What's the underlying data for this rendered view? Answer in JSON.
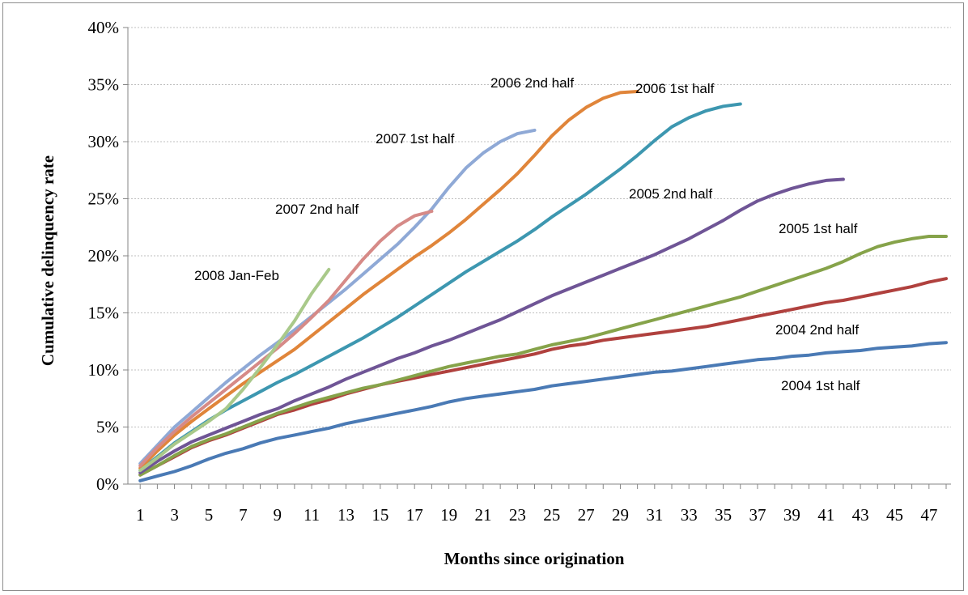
{
  "chart_data": {
    "type": "line",
    "title": "",
    "xlabel": "Months since origination",
    "ylabel": "Cumulative delinquency rate",
    "xlim": [
      1,
      48
    ],
    "ylim": [
      0,
      40
    ],
    "y_ticks": [
      "0%",
      "5%",
      "10%",
      "15%",
      "20%",
      "25%",
      "30%",
      "35%",
      "40%"
    ],
    "x_ticks": [
      "1",
      "3",
      "5",
      "7",
      "9",
      "11",
      "13",
      "15",
      "17",
      "19",
      "21",
      "23",
      "25",
      "27",
      "29",
      "31",
      "33",
      "35",
      "37",
      "39",
      "41",
      "43",
      "45",
      "47"
    ],
    "grid": true,
    "legend": "inline labels",
    "series": [
      {
        "name": "2004 1st half",
        "color": "#4a7ab5",
        "x": [
          1,
          2,
          3,
          4,
          5,
          6,
          7,
          8,
          9,
          10,
          11,
          12,
          13,
          14,
          15,
          16,
          17,
          18,
          19,
          20,
          21,
          22,
          23,
          24,
          25,
          26,
          27,
          28,
          29,
          30,
          31,
          32,
          33,
          34,
          35,
          36,
          37,
          38,
          39,
          40,
          41,
          42,
          43,
          44,
          45,
          46,
          47,
          48
        ],
        "values": [
          0.3,
          0.7,
          1.1,
          1.6,
          2.2,
          2.7,
          3.1,
          3.6,
          4.0,
          4.3,
          4.6,
          4.9,
          5.3,
          5.6,
          5.9,
          6.2,
          6.5,
          6.8,
          7.2,
          7.5,
          7.7,
          7.9,
          8.1,
          8.3,
          8.6,
          8.8,
          9.0,
          9.2,
          9.4,
          9.6,
          9.8,
          9.9,
          10.1,
          10.3,
          10.5,
          10.7,
          10.9,
          11.0,
          11.2,
          11.3,
          11.5,
          11.6,
          11.7,
          11.9,
          12.0,
          12.1,
          12.3,
          12.4
        ]
      },
      {
        "name": "2004 2nd half",
        "color": "#b0413e",
        "x": [
          1,
          2,
          3,
          4,
          5,
          6,
          7,
          8,
          9,
          10,
          11,
          12,
          13,
          14,
          15,
          16,
          17,
          18,
          19,
          20,
          21,
          22,
          23,
          24,
          25,
          26,
          27,
          28,
          29,
          30,
          31,
          32,
          33,
          34,
          35,
          36,
          37,
          38,
          39,
          40,
          41,
          42,
          43,
          44,
          45,
          46,
          47,
          48
        ],
        "values": [
          0.8,
          1.6,
          2.4,
          3.2,
          3.8,
          4.3,
          4.9,
          5.5,
          6.1,
          6.5,
          7.0,
          7.4,
          7.9,
          8.3,
          8.7,
          9.0,
          9.3,
          9.6,
          9.9,
          10.2,
          10.5,
          10.8,
          11.1,
          11.4,
          11.8,
          12.1,
          12.3,
          12.6,
          12.8,
          13.0,
          13.2,
          13.4,
          13.6,
          13.8,
          14.1,
          14.4,
          14.7,
          15.0,
          15.3,
          15.6,
          15.9,
          16.1,
          16.4,
          16.7,
          17.0,
          17.3,
          17.7,
          18.0
        ]
      },
      {
        "name": "2005 1st half",
        "color": "#86a34a",
        "x": [
          1,
          2,
          3,
          4,
          5,
          6,
          7,
          8,
          9,
          10,
          11,
          12,
          13,
          14,
          15,
          16,
          17,
          18,
          19,
          20,
          21,
          22,
          23,
          24,
          25,
          26,
          27,
          28,
          29,
          30,
          31,
          32,
          33,
          34,
          35,
          36,
          37,
          38,
          39,
          40,
          41,
          42,
          43,
          44,
          45,
          46,
          47,
          48
        ],
        "values": [
          0.8,
          1.6,
          2.5,
          3.3,
          3.9,
          4.4,
          5.0,
          5.6,
          6.2,
          6.7,
          7.2,
          7.6,
          8.0,
          8.4,
          8.7,
          9.1,
          9.5,
          9.9,
          10.3,
          10.6,
          10.9,
          11.2,
          11.4,
          11.8,
          12.2,
          12.5,
          12.8,
          13.2,
          13.6,
          14.0,
          14.4,
          14.8,
          15.2,
          15.6,
          16.0,
          16.4,
          16.9,
          17.4,
          17.9,
          18.4,
          18.9,
          19.5,
          20.2,
          20.8,
          21.2,
          21.5,
          21.7,
          21.7
        ]
      },
      {
        "name": "2005 2nd half",
        "color": "#6f5596",
        "x": [
          1,
          2,
          3,
          4,
          5,
          6,
          7,
          8,
          9,
          10,
          11,
          12,
          13,
          14,
          15,
          16,
          17,
          18,
          19,
          20,
          21,
          22,
          23,
          24,
          25,
          26,
          27,
          28,
          29,
          30,
          31,
          32,
          33,
          34,
          35,
          36,
          37,
          38,
          39,
          40,
          41,
          42
        ],
        "values": [
          1.0,
          2.0,
          2.9,
          3.7,
          4.3,
          4.9,
          5.5,
          6.1,
          6.6,
          7.3,
          7.9,
          8.5,
          9.2,
          9.8,
          10.4,
          11.0,
          11.5,
          12.1,
          12.6,
          13.2,
          13.8,
          14.4,
          15.1,
          15.8,
          16.5,
          17.1,
          17.7,
          18.3,
          18.9,
          19.5,
          20.1,
          20.8,
          21.5,
          22.3,
          23.1,
          24.0,
          24.8,
          25.4,
          25.9,
          26.3,
          26.6,
          26.7
        ]
      },
      {
        "name": "2006 1st half",
        "color": "#3d97b0",
        "x": [
          1,
          2,
          3,
          4,
          5,
          6,
          7,
          8,
          9,
          10,
          11,
          12,
          13,
          14,
          15,
          16,
          17,
          18,
          19,
          20,
          21,
          22,
          23,
          24,
          25,
          26,
          27,
          28,
          29,
          30,
          31,
          32,
          33,
          34,
          35,
          36
        ],
        "values": [
          1.2,
          2.4,
          3.6,
          4.6,
          5.6,
          6.5,
          7.3,
          8.1,
          8.9,
          9.6,
          10.4,
          11.2,
          12.0,
          12.8,
          13.7,
          14.6,
          15.6,
          16.6,
          17.6,
          18.6,
          19.5,
          20.4,
          21.3,
          22.3,
          23.4,
          24.4,
          25.4,
          26.5,
          27.6,
          28.8,
          30.1,
          31.3,
          32.1,
          32.7,
          33.1,
          33.3
        ]
      },
      {
        "name": "2006 2nd half",
        "color": "#e0853a",
        "x": [
          1,
          2,
          3,
          4,
          5,
          6,
          7,
          8,
          9,
          10,
          11,
          12,
          13,
          14,
          15,
          16,
          17,
          18,
          19,
          20,
          21,
          22,
          23,
          24,
          25,
          26,
          27,
          28,
          29,
          30
        ],
        "values": [
          1.4,
          2.9,
          4.3,
          5.5,
          6.6,
          7.7,
          8.8,
          9.8,
          10.8,
          11.8,
          13.0,
          14.2,
          15.4,
          16.6,
          17.7,
          18.8,
          19.9,
          20.9,
          22.0,
          23.2,
          24.5,
          25.8,
          27.2,
          28.8,
          30.5,
          31.9,
          33.0,
          33.8,
          34.3,
          34.4
        ]
      },
      {
        "name": "2007 1st half",
        "color": "#8fa9d6",
        "x": [
          1,
          2,
          3,
          4,
          5,
          6,
          7,
          8,
          9,
          10,
          11,
          12,
          13,
          14,
          15,
          16,
          17,
          18,
          19,
          20,
          21,
          22,
          23,
          24
        ],
        "values": [
          1.8,
          3.4,
          5.0,
          6.3,
          7.6,
          8.9,
          10.1,
          11.3,
          12.4,
          13.5,
          14.7,
          15.9,
          17.1,
          18.4,
          19.7,
          21.0,
          22.5,
          24.1,
          26.0,
          27.7,
          29.0,
          30.0,
          30.7,
          31.0
        ]
      },
      {
        "name": "2007 2nd half",
        "color": "#d68a87",
        "x": [
          1,
          2,
          3,
          4,
          5,
          6,
          7,
          8,
          9,
          10,
          11,
          12,
          13,
          14,
          15,
          16,
          17,
          18
        ],
        "values": [
          1.6,
          3.2,
          4.6,
          5.9,
          7.1,
          8.3,
          9.5,
          10.7,
          11.9,
          13.2,
          14.6,
          16.1,
          17.9,
          19.7,
          21.3,
          22.6,
          23.5,
          23.9
        ]
      },
      {
        "name": "2008 Jan-Feb",
        "color": "#a9c98a",
        "x": [
          1,
          2,
          3,
          4,
          5,
          6,
          7,
          8,
          9,
          10,
          11,
          12
        ],
        "values": [
          1.2,
          2.3,
          3.5,
          4.5,
          5.5,
          6.6,
          8.3,
          10.2,
          12.2,
          14.3,
          16.7,
          18.8
        ]
      }
    ],
    "labels": [
      {
        "series": "2004 1st half",
        "text": "2004 1st half"
      },
      {
        "series": "2004 2nd half",
        "text": "2004 2nd half"
      },
      {
        "series": "2005 1st half",
        "text": "2005 1st half"
      },
      {
        "series": "2005 2nd half",
        "text": "2005 2nd half"
      },
      {
        "series": "2006 1st half",
        "text": "2006 1st half"
      },
      {
        "series": "2006 2nd half",
        "text": "2006 2nd half"
      },
      {
        "series": "2007 1st half",
        "text": "2007 1st half"
      },
      {
        "series": "2007 2nd half",
        "text": "2007 2nd half"
      },
      {
        "series": "2008 Jan-Feb",
        "text": "2008 Jan-Feb"
      }
    ]
  }
}
